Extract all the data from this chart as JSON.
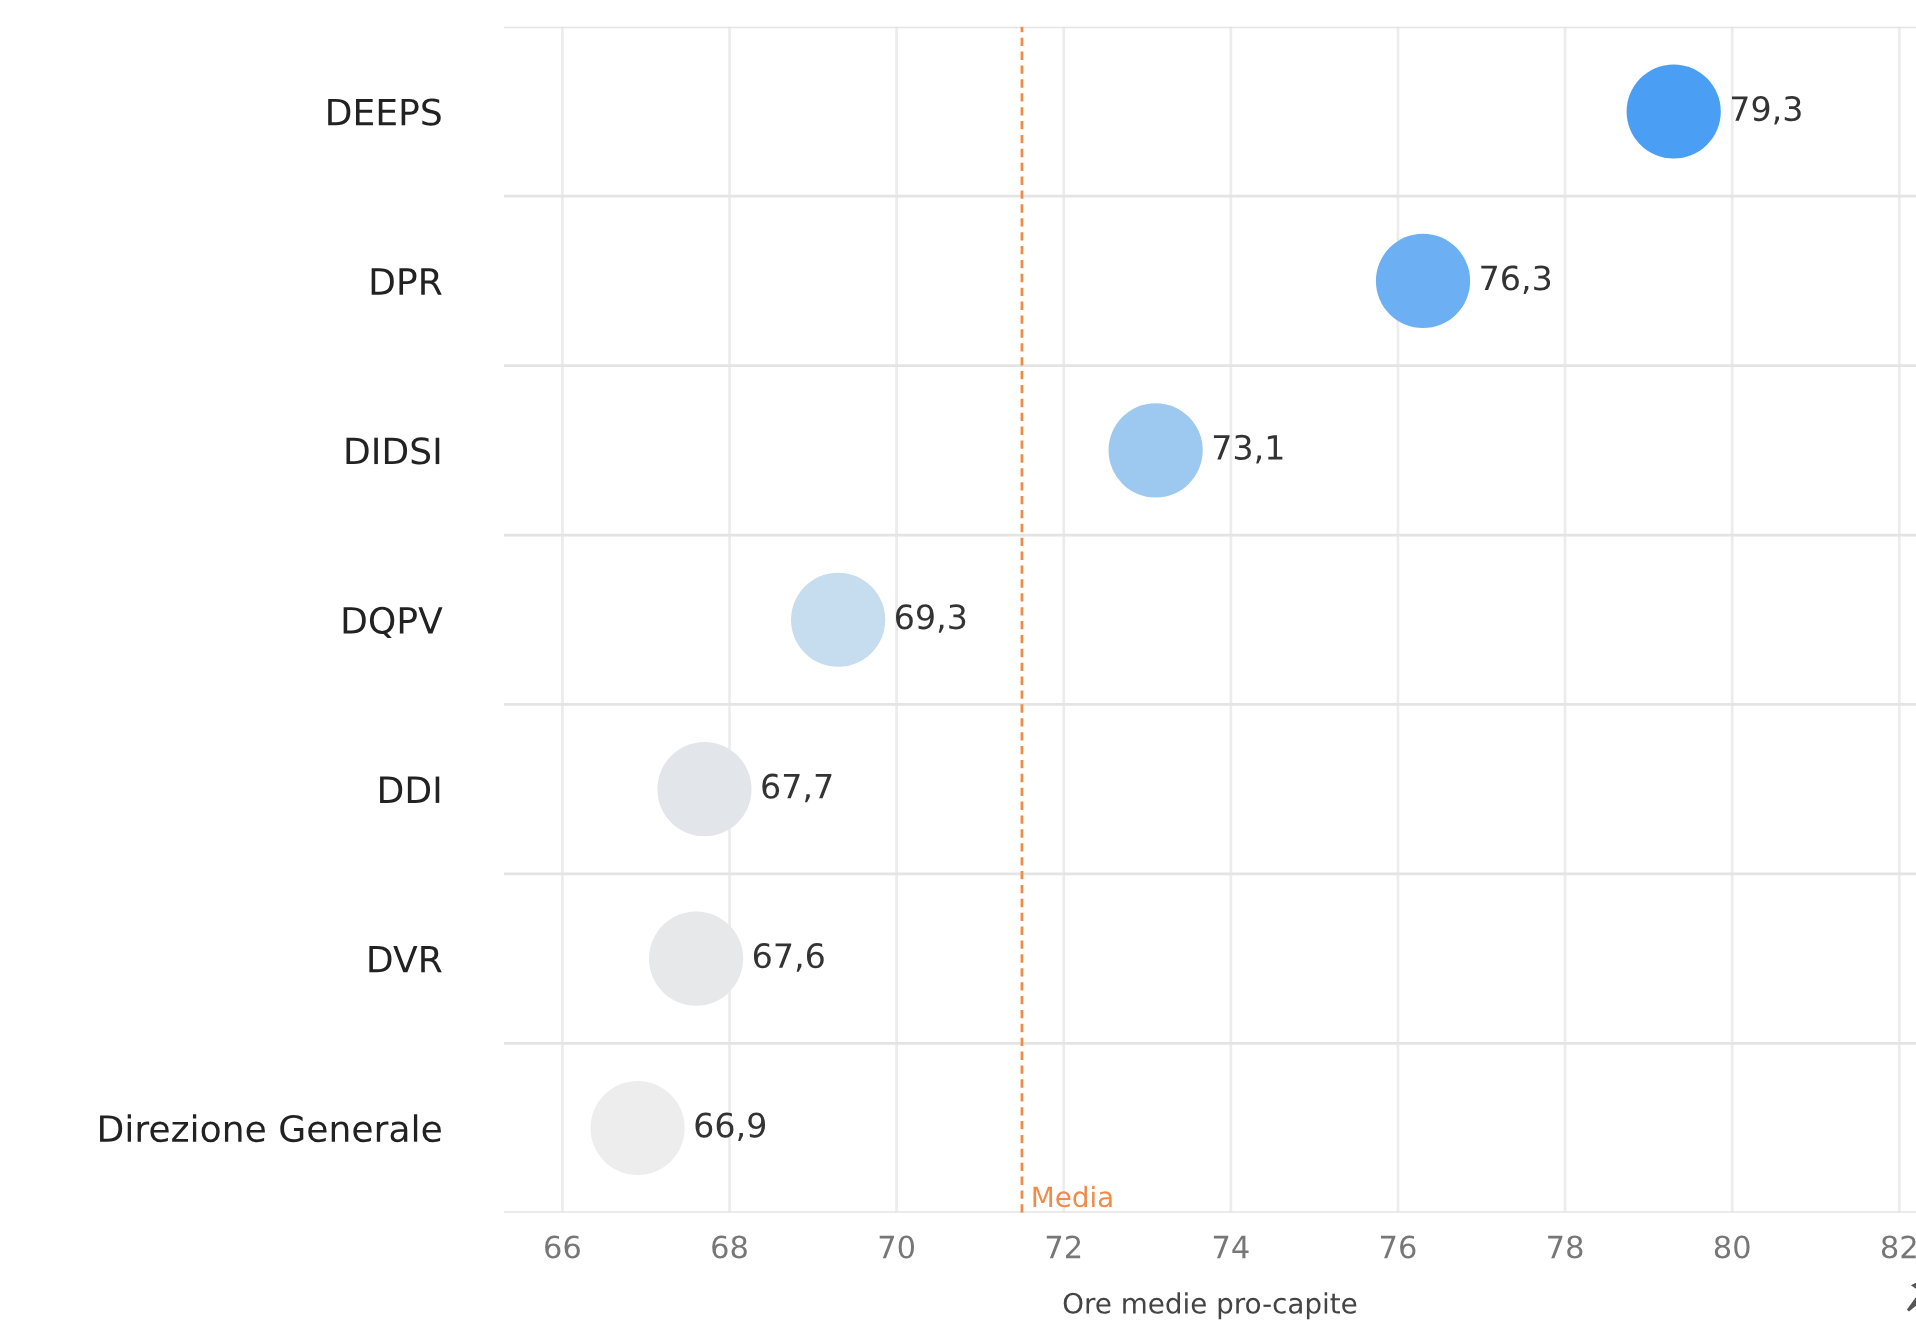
{
  "chart_data": {
    "type": "scatter",
    "categories": [
      "DEEPS",
      "DPR",
      "DIDSI",
      "DQPV",
      "DDI",
      "DVR",
      "Direzione Generale"
    ],
    "orientation": "horizontal",
    "values": [
      79.3,
      76.3,
      73.1,
      69.3,
      67.7,
      67.6,
      66.9
    ],
    "value_labels": [
      "79,3",
      "76,3",
      "73,1",
      "69,3",
      "67,7",
      "67,6",
      "66,9"
    ],
    "colors": [
      "#4a9ff5",
      "#6cb0f3",
      "#9dc8f0",
      "#c6dcef",
      "#e2e6ea",
      "#e6e8ea",
      "#ededed"
    ],
    "marker": "circle",
    "xlabel": "Ore medie pro-capite",
    "xlim": [
      65.3,
      82.2
    ],
    "xticks": [
      66,
      68,
      70,
      72,
      74,
      76,
      78,
      80,
      82
    ],
    "ref_lines": [
      {
        "axis": "x",
        "value": 71.5,
        "label": "Media",
        "color": "#f08c4a",
        "line_style": "dashed"
      }
    ],
    "grid": true,
    "legend": false
  }
}
